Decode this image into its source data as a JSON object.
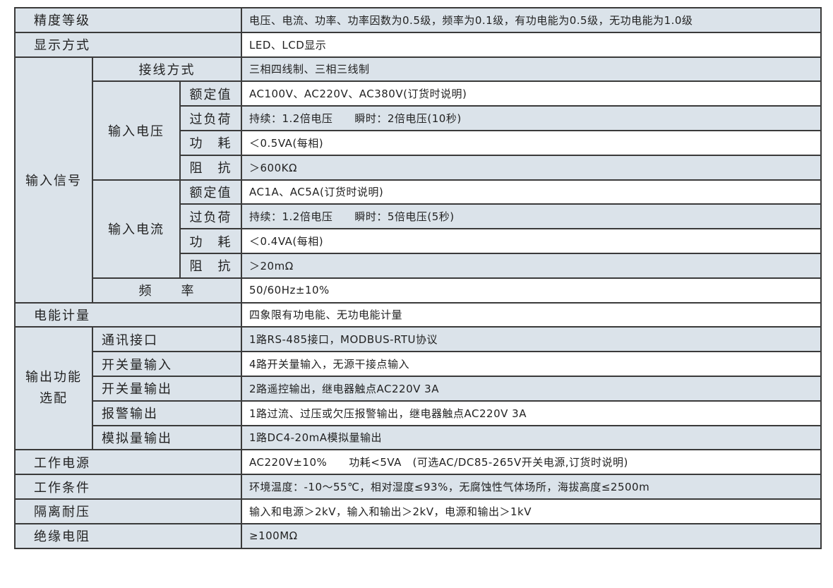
{
  "rows": {
    "accuracy": {
      "label": "精度等级",
      "value": "电压、电流、功率、功率因数为0.5级，频率为0.1级，有功电能为0.5级，无功电能为1.0级"
    },
    "display": {
      "label": "显示方式",
      "value": "LED、LCD显示"
    },
    "input_signal": {
      "label": "输入信号",
      "wiring": {
        "label": "接线方式",
        "value": "三相四线制、三相三线制"
      },
      "voltage": {
        "label": "输入电压",
        "rated": {
          "label": "额定值",
          "value": "AC100V、AC220V、AC380V(订货时说明)"
        },
        "overload": {
          "label": "过负荷",
          "value": "持续：1.2倍电压　　瞬时：2倍电压(10秒)"
        },
        "power": {
          "label": "功　耗",
          "value": "＜0.5VA(每相)"
        },
        "impedance": {
          "label": "阻　抗",
          "value": "＞600KΩ"
        }
      },
      "current": {
        "label": "输入电流",
        "rated": {
          "label": "额定值",
          "value": "AC1A、AC5A(订货时说明)"
        },
        "overload": {
          "label": "过负荷",
          "value": "持续：1.2倍电压　　瞬时：5倍电压(5秒)"
        },
        "power": {
          "label": "功　耗",
          "value": "＜0.4VA(每相)"
        },
        "impedance": {
          "label": "阻　抗",
          "value": "＞20mΩ"
        }
      },
      "frequency": {
        "label": "频　　率",
        "value": "50/60Hz±10%"
      }
    },
    "energy": {
      "label": "电能计量",
      "value": "四象限有功电能、无功电能计量"
    },
    "output": {
      "label": "输出功能选配",
      "items": [
        {
          "label": "通讯接口",
          "value": "1路RS-485接口，MODBUS-RTU协议"
        },
        {
          "label": "开关量输入",
          "value": "4路开关量输入，无源干接点输入"
        },
        {
          "label": "开关量输出",
          "value": "2路遥控输出，继电器触点AC220V 3A"
        },
        {
          "label": "报警输出",
          "value": "1路过流、过压或欠压报警输出，继电器触点AC220V 3A"
        },
        {
          "label": "模拟量输出",
          "value": "1路DC4-20mA模拟量输出"
        }
      ]
    },
    "power_supply": {
      "label": "工作电源",
      "value": "AC220V±10%　　功耗<5VA　(可选AC/DC85-265V开关电源,订货时说明)"
    },
    "conditions": {
      "label": "工作条件",
      "value": "环境温度：-10～55℃，相对湿度≤93%，无腐蚀性气体场所，海拔高度≤2500m"
    },
    "isolation": {
      "label": "隔离耐压",
      "value": "输入和电源＞2kV，输入和输出＞2kV，电源和输出＞1kV"
    },
    "insulation": {
      "label": "绝缘电阻",
      "value": "≥100MΩ"
    }
  },
  "colors": {
    "label_bg": "#dbe3ea",
    "border": "#3a3a3a"
  }
}
